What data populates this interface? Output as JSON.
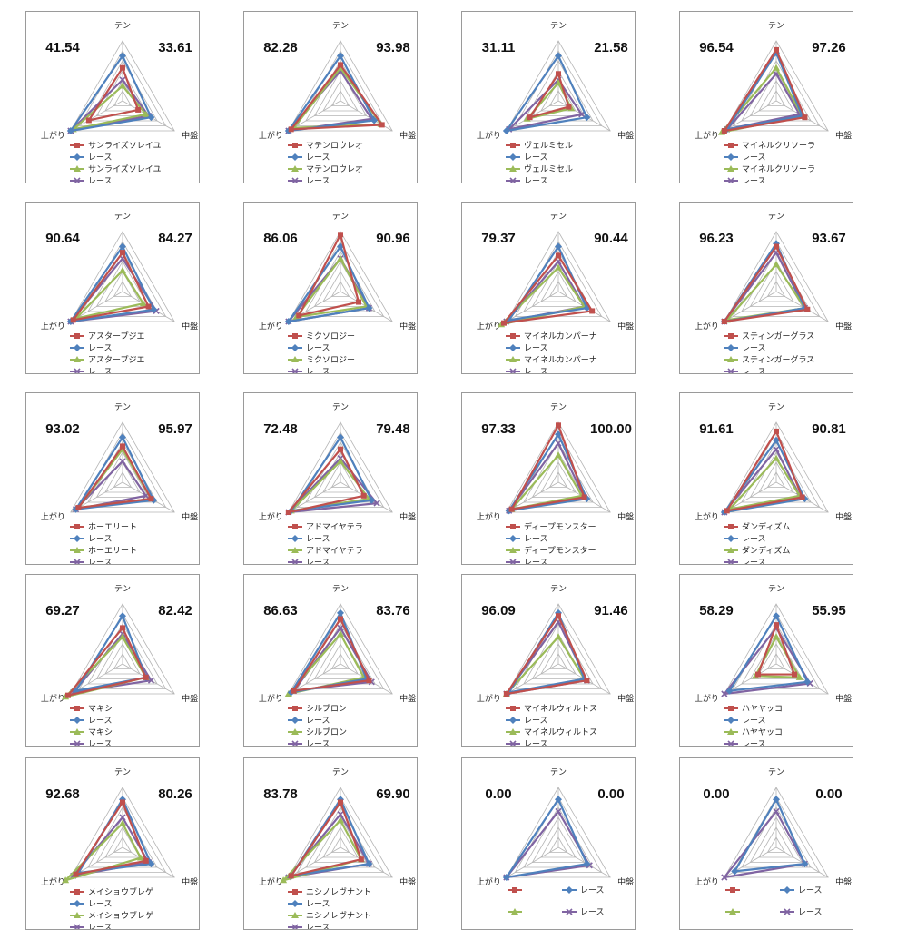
{
  "axes": [
    "テン",
    "中盤",
    "上がり"
  ],
  "series_colors": {
    "horse": "#c0504d",
    "race": "#4f81bd",
    "horse2": "#9bbb59",
    "race2": "#8064a2"
  },
  "chart_data": [
    {
      "type": "radar",
      "left_score": "41.54",
      "right_score": "33.61",
      "legend": [
        "サンライズソレイユ",
        "レース",
        "サンライズソレイユ",
        "レース"
      ],
      "series": [
        [
          0.55,
          0.3,
          0.65
        ],
        [
          0.75,
          0.55,
          1.0
        ],
        [
          0.25,
          0.45,
          0.95
        ],
        [
          0.35,
          0.5,
          1.0
        ]
      ]
    },
    {
      "type": "radar",
      "left_score": "82.28",
      "right_score": "93.98",
      "legend": [
        "マテンロウレオ",
        "レース",
        "マテンロウレオ",
        "レース"
      ],
      "series": [
        [
          0.6,
          0.8,
          0.95
        ],
        [
          0.75,
          0.65,
          1.0
        ],
        [
          0.55,
          0.78,
          0.9
        ],
        [
          0.5,
          0.6,
          1.0
        ]
      ]
    },
    {
      "type": "radar",
      "left_score": "31.11",
      "right_score": "21.58",
      "legend": [
        "ヴェルミセル",
        "レース",
        "ヴェルミセル",
        "レース"
      ],
      "series": [
        [
          0.45,
          0.2,
          0.55
        ],
        [
          0.75,
          0.55,
          1.0
        ],
        [
          0.3,
          0.25,
          0.6
        ],
        [
          0.35,
          0.45,
          0.95
        ]
      ]
    },
    {
      "type": "radar",
      "left_score": "96.54",
      "right_score": "97.26",
      "legend": [
        "マイネルクリソーラ",
        "レース",
        "マイネルクリソーラ",
        "レース"
      ],
      "series": [
        [
          0.85,
          0.55,
          1.0
        ],
        [
          0.8,
          0.5,
          0.95
        ],
        [
          0.55,
          0.5,
          1.05
        ],
        [
          0.45,
          0.45,
          0.95
        ]
      ]
    },
    {
      "type": "radar",
      "left_score": "90.64",
      "right_score": "84.27",
      "legend": [
        "アスタープジエ",
        "レース",
        "アスタープジエ",
        "レース"
      ],
      "series": [
        [
          0.65,
          0.5,
          0.95
        ],
        [
          0.75,
          0.6,
          1.0
        ],
        [
          0.35,
          0.4,
          0.9
        ],
        [
          0.55,
          0.65,
          1.0
        ]
      ]
    },
    {
      "type": "radar",
      "left_score": "86.06",
      "right_score": "90.96",
      "legend": [
        "ミクソロジー",
        "レース",
        "ミクソロジー",
        "レース"
      ],
      "series": [
        [
          0.95,
          0.35,
          0.8
        ],
        [
          0.75,
          0.55,
          1.0
        ],
        [
          0.55,
          0.5,
          0.85
        ],
        [
          0.55,
          0.55,
          1.0
        ]
      ]
    },
    {
      "type": "radar",
      "left_score": "79.37",
      "right_score": "90.44",
      "legend": [
        "マイネルカンパーナ",
        "レース",
        "マイネルカンパーナ",
        "レース"
      ],
      "series": [
        [
          0.6,
          0.65,
          1.05
        ],
        [
          0.75,
          0.55,
          0.95
        ],
        [
          0.4,
          0.5,
          1.1
        ],
        [
          0.5,
          0.5,
          1.0
        ]
      ]
    },
    {
      "type": "radar",
      "left_score": "96.23",
      "right_score": "93.67",
      "legend": [
        "スティンガーグラス",
        "レース",
        "スティンガーグラス",
        "レース"
      ],
      "series": [
        [
          0.75,
          0.6,
          1.0
        ],
        [
          0.8,
          0.55,
          1.0
        ],
        [
          0.45,
          0.55,
          0.95
        ],
        [
          0.65,
          0.55,
          1.0
        ]
      ]
    },
    {
      "type": "radar",
      "left_score": "93.02",
      "right_score": "95.97",
      "legend": [
        "ホーエリート",
        "レース",
        "ホーエリート",
        "レース"
      ],
      "series": [
        [
          0.6,
          0.55,
          0.85
        ],
        [
          0.75,
          0.6,
          0.9
        ],
        [
          0.55,
          0.55,
          0.85
        ],
        [
          0.35,
          0.45,
          0.9
        ]
      ]
    },
    {
      "type": "radar",
      "left_score": "72.48",
      "right_score": "79.48",
      "legend": [
        "アドマイヤテラ",
        "レース",
        "アドマイヤテラ",
        "レース"
      ],
      "series": [
        [
          0.55,
          0.45,
          1.0
        ],
        [
          0.75,
          0.6,
          0.95
        ],
        [
          0.35,
          0.55,
          0.95
        ],
        [
          0.4,
          0.7,
          1.0
        ]
      ]
    },
    {
      "type": "radar",
      "left_score": "97.33",
      "right_score": "100.00",
      "legend": [
        "ディープモンスター",
        "レース",
        "ディープモンスター",
        "レース"
      ],
      "series": [
        [
          0.95,
          0.5,
          0.9
        ],
        [
          0.8,
          0.55,
          0.95
        ],
        [
          0.45,
          0.45,
          0.9
        ],
        [
          0.65,
          0.5,
          0.95
        ]
      ]
    },
    {
      "type": "radar",
      "left_score": "91.61",
      "right_score": "90.81",
      "legend": [
        "ダンディズム",
        "レース",
        "ダンディズム",
        "レース"
      ],
      "series": [
        [
          0.85,
          0.5,
          0.95
        ],
        [
          0.7,
          0.55,
          1.0
        ],
        [
          0.4,
          0.45,
          0.9
        ],
        [
          0.55,
          0.45,
          1.0
        ]
      ]
    },
    {
      "type": "radar",
      "left_score": "69.27",
      "right_score": "82.42",
      "legend": [
        "マキシ",
        "レース",
        "マキシ",
        "レース"
      ],
      "series": [
        [
          0.6,
          0.45,
          1.05
        ],
        [
          0.8,
          0.45,
          0.9
        ],
        [
          0.45,
          0.45,
          1.1
        ],
        [
          0.5,
          0.55,
          0.95
        ]
      ]
    },
    {
      "type": "radar",
      "left_score": "86.63",
      "right_score": "83.76",
      "legend": [
        "シルブロン",
        "レース",
        "シルブロン",
        "レース"
      ],
      "series": [
        [
          0.75,
          0.55,
          0.9
        ],
        [
          0.85,
          0.5,
          0.95
        ],
        [
          0.5,
          0.45,
          1.0
        ],
        [
          0.6,
          0.6,
          0.9
        ]
      ]
    },
    {
      "type": "radar",
      "left_score": "96.09",
      "right_score": "91.46",
      "legend": [
        "マイネルウィルトス",
        "レース",
        "マイネルウィルトス",
        "レース"
      ],
      "series": [
        [
          0.8,
          0.55,
          1.0
        ],
        [
          0.85,
          0.5,
          0.95
        ],
        [
          0.45,
          0.5,
          1.0
        ],
        [
          0.7,
          0.55,
          1.0
        ]
      ]
    },
    {
      "type": "radar",
      "left_score": "58.29",
      "right_score": "55.95",
      "legend": [
        "ハヤヤッコ",
        "レース",
        "ハヤヤッコ",
        "レース"
      ],
      "series": [
        [
          0.65,
          0.35,
          0.35
        ],
        [
          0.8,
          0.6,
          0.9
        ],
        [
          0.45,
          0.45,
          0.4
        ],
        [
          0.6,
          0.65,
          1.0
        ]
      ]
    },
    {
      "type": "radar",
      "left_score": "92.68",
      "right_score": "80.26",
      "legend": [
        "メイショウブレゲ",
        "レース",
        "メイショウブレゲ",
        "レース"
      ],
      "series": [
        [
          0.75,
          0.45,
          0.9
        ],
        [
          0.8,
          0.55,
          0.85
        ],
        [
          0.4,
          0.35,
          1.1
        ],
        [
          0.5,
          0.5,
          0.95
        ]
      ]
    },
    {
      "type": "radar",
      "left_score": "83.78",
      "right_score": "69.90",
      "legend": [
        "ニシノレヴナント",
        "レース",
        "ニシノレヴナント",
        "レース"
      ],
      "series": [
        [
          0.75,
          0.4,
          0.95
        ],
        [
          0.8,
          0.55,
          0.95
        ],
        [
          0.45,
          0.4,
          1.1
        ],
        [
          0.55,
          0.55,
          1.0
        ]
      ]
    },
    {
      "type": "radar",
      "left_score": "0.00",
      "right_score": "0.00",
      "legend": [
        "",
        "レース",
        "",
        "レース"
      ],
      "series": [
        null,
        [
          0.8,
          0.55,
          1.0
        ],
        null,
        [
          0.6,
          0.6,
          1.0
        ]
      ]
    },
    {
      "type": "radar",
      "left_score": "0.00",
      "right_score": "0.00",
      "legend": [
        "",
        "レース",
        "",
        "レース"
      ],
      "series": [
        null,
        [
          0.8,
          0.55,
          0.8
        ],
        null,
        [
          0.6,
          0.55,
          1.0
        ]
      ]
    }
  ]
}
